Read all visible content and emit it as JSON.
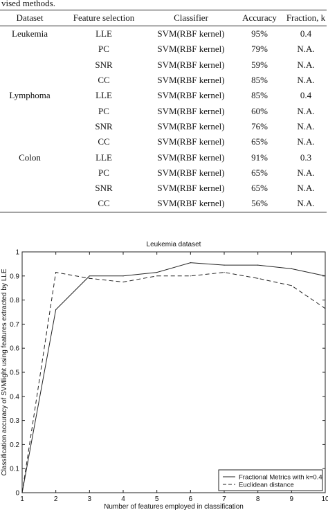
{
  "caption_tail": "vised methods.",
  "table": {
    "headers": [
      "Dataset",
      "Feature selection",
      "Classifier",
      "Accuracy",
      "Fraction, k"
    ],
    "rows": [
      [
        "Leukemia",
        "LLE",
        "SVM(RBF kernel)",
        "95%",
        "0.4"
      ],
      [
        "",
        "PC",
        "SVM(RBF kernel)",
        "79%",
        "N.A."
      ],
      [
        "",
        "SNR",
        "SVM(RBF kernel)",
        "59%",
        "N.A."
      ],
      [
        "",
        "CC",
        "SVM(RBF kernel)",
        "85%",
        "N.A."
      ],
      [
        "Lymphoma",
        "LLE",
        "SVM(RBF kernel)",
        "85%",
        "0.4"
      ],
      [
        "",
        "PC",
        "SVM(RBF kernel)",
        "60%",
        "N.A."
      ],
      [
        "",
        "SNR",
        "SVM(RBF kernel)",
        "76%",
        "N.A."
      ],
      [
        "",
        "CC",
        "SVM(RBF kernel)",
        "65%",
        "N.A."
      ],
      [
        "Colon",
        "LLE",
        "SVM(RBF kernel)",
        "91%",
        "0.3"
      ],
      [
        "",
        "PC",
        "SVM(RBF kernel)",
        "65%",
        "N.A."
      ],
      [
        "",
        "SNR",
        "SVM(RBF kernel)",
        "65%",
        "N.A."
      ],
      [
        "",
        "CC",
        "SVM(RBF kernel)",
        "56%",
        "N.A."
      ]
    ]
  },
  "chart_data": {
    "type": "line",
    "title": "Leukemia dataset",
    "xlabel": "Number of features employed in classification",
    "ylabel": "Classification accuracy of SVMlight using features extracted by LLE",
    "xlim": [
      1,
      10
    ],
    "ylim": [
      0,
      1
    ],
    "xticks": [
      1,
      2,
      3,
      4,
      5,
      6,
      7,
      8,
      9,
      10
    ],
    "yticks": [
      0,
      0.1,
      0.2,
      0.3,
      0.4,
      0.5,
      0.6,
      0.7,
      0.8,
      0.9,
      1
    ],
    "legend_position": "bottom-right",
    "x": [
      1,
      2,
      3,
      4,
      5,
      6,
      7,
      8,
      9,
      10
    ],
    "series": [
      {
        "name": "Fractional Metrics with k=0.4",
        "style": "solid",
        "values": [
          0.0,
          0.76,
          0.9,
          0.9,
          0.915,
          0.955,
          0.945,
          0.945,
          0.93,
          0.9
        ]
      },
      {
        "name": "Euclidean distance",
        "style": "dashed",
        "values": [
          0.0,
          0.915,
          0.89,
          0.875,
          0.9,
          0.9,
          0.915,
          0.89,
          0.86,
          0.765
        ]
      }
    ]
  }
}
